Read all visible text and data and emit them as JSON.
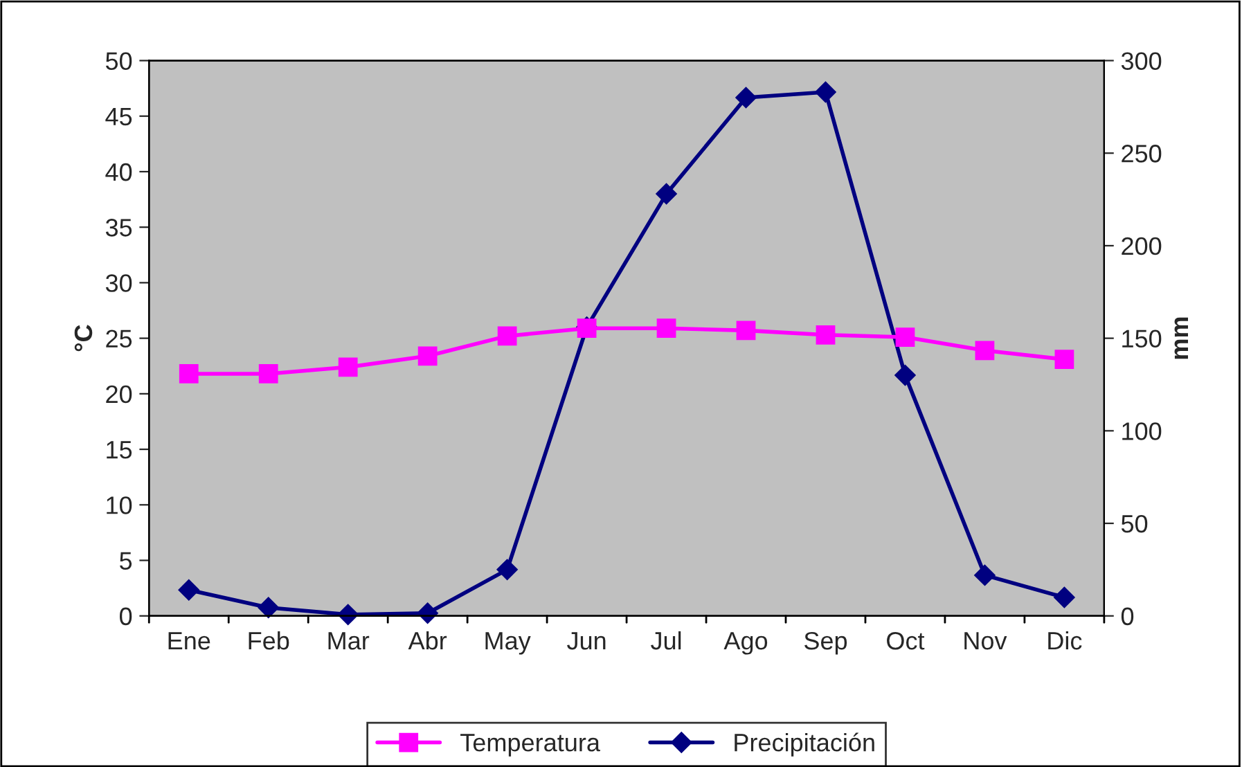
{
  "chart_data": {
    "type": "line",
    "ylabel": "°C",
    "y2label": "mm",
    "categories": [
      "Ene",
      "Feb",
      "Mar",
      "Abr",
      "May",
      "Jun",
      "Jul",
      "Ago",
      "Sep",
      "Oct",
      "Nov",
      "Dic"
    ],
    "series": [
      {
        "name": "Temperatura",
        "color": "#ff00ff",
        "marker": "square",
        "values": [
          21.8,
          21.8,
          22.4,
          23.4,
          25.2,
          25.9,
          25.9,
          25.7,
          25.3,
          25.1,
          23.9,
          23.1
        ]
      },
      {
        "name": "Precipitación",
        "color": "#000080",
        "marker": "diamond",
        "axis": "y2",
        "values": [
          14,
          4.5,
          0.7,
          1.5,
          25,
          156,
          228,
          280,
          283,
          130,
          22,
          10
        ]
      }
    ],
    "ylim": [
      0,
      50
    ],
    "yticks": [
      0,
      5,
      10,
      15,
      20,
      25,
      30,
      35,
      40,
      45,
      50
    ],
    "y2lim": [
      0,
      300
    ],
    "y2ticks": [
      0,
      50,
      100,
      150,
      200,
      250,
      300
    ],
    "legend": "bottom"
  }
}
